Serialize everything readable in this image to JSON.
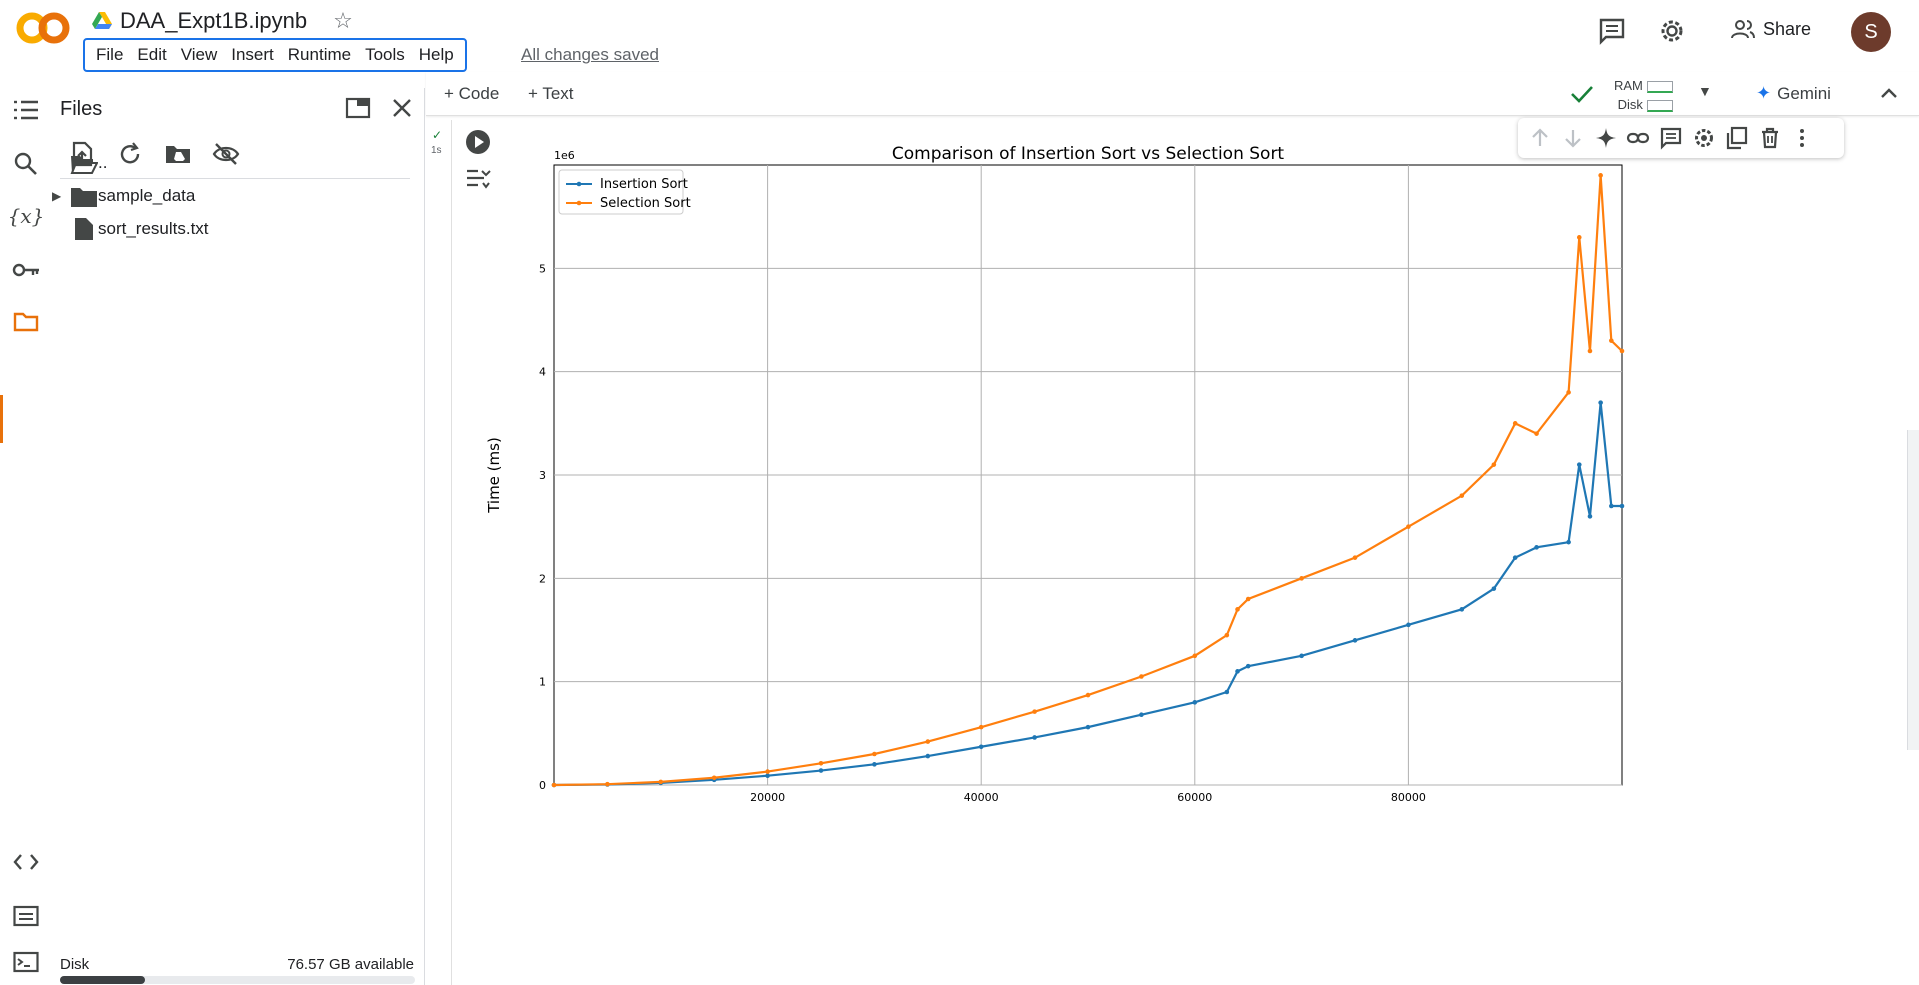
{
  "app": {
    "doc_name": "DAA_Expt1B.ipynb",
    "menu": [
      "File",
      "Edit",
      "View",
      "Insert",
      "Runtime",
      "Tools",
      "Help"
    ],
    "save_status": "All changes saved",
    "share_label": "Share",
    "avatar_letter": "S"
  },
  "toolbar": {
    "add_code": "+ Code",
    "add_text": "+ Text",
    "ram_label": "RAM",
    "disk_label": "Disk",
    "gemini_label": "Gemini"
  },
  "files_panel": {
    "title": "Files",
    "items": [
      {
        "name": "..",
        "type": "parent-folder"
      },
      {
        "name": "sample_data",
        "type": "folder"
      },
      {
        "name": "sort_results.txt",
        "type": "file"
      }
    ],
    "disk_label": "Disk",
    "disk_available": "76.57 GB available",
    "disk_used_fraction": 0.24
  },
  "cell": {
    "status_check": "✓",
    "exec_time": "1s"
  },
  "chart_data": {
    "type": "line",
    "title": "Comparison of Insertion Sort vs Selection Sort",
    "xlabel": "",
    "ylabel": "Time (ms)",
    "y_offset_label": "1e6",
    "xlim": [
      0,
      100000
    ],
    "ylim": [
      0,
      6000000
    ],
    "xticks": [
      20000,
      40000,
      60000,
      80000
    ],
    "yticks": [
      0,
      1,
      2,
      3,
      4,
      5
    ],
    "grid": true,
    "legend_position": "top-left",
    "series": [
      {
        "name": "Insertion Sort",
        "color": "#1f77b4",
        "x": [
          0,
          5000,
          10000,
          15000,
          20000,
          25000,
          30000,
          35000,
          40000,
          45000,
          50000,
          55000,
          60000,
          63000,
          64000,
          65000,
          70000,
          75000,
          80000,
          85000,
          88000,
          90000,
          92000,
          95000,
          96000,
          97000,
          98000,
          99000,
          100000
        ],
        "y": [
          0,
          5000,
          20000,
          50000,
          90000,
          140000,
          200000,
          280000,
          370000,
          460000,
          560000,
          680000,
          800000,
          900000,
          1100000,
          1150000,
          1250000,
          1400000,
          1550000,
          1700000,
          1900000,
          2200000,
          2300000,
          2350000,
          3100000,
          2600000,
          3700000,
          2700000,
          2700000
        ]
      },
      {
        "name": "Selection Sort",
        "color": "#ff7f0e",
        "x": [
          0,
          5000,
          10000,
          15000,
          20000,
          25000,
          30000,
          35000,
          40000,
          45000,
          50000,
          55000,
          60000,
          63000,
          64000,
          65000,
          70000,
          75000,
          80000,
          85000,
          88000,
          90000,
          92000,
          95000,
          96000,
          97000,
          98000,
          99000,
          100000
        ],
        "y": [
          0,
          8000,
          30000,
          70000,
          130000,
          210000,
          300000,
          420000,
          560000,
          710000,
          870000,
          1050000,
          1250000,
          1450000,
          1700000,
          1800000,
          2000000,
          2200000,
          2500000,
          2800000,
          3100000,
          3500000,
          3400000,
          3800000,
          5300000,
          4200000,
          5900000,
          4300000,
          4200000
        ]
      }
    ]
  }
}
